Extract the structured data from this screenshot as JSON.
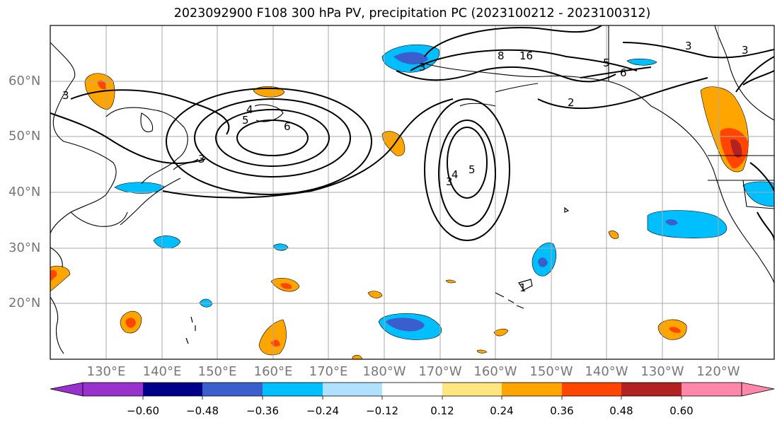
{
  "title": "2023092900 F108 300 hPa PV, precipitation PC (2023100212 - 2023100312)",
  "lat_labels": [
    "60°N",
    "50°N",
    "40°N",
    "30°N",
    "20°N"
  ],
  "lon_labels": [
    "130°E",
    "140°E",
    "150°E",
    "160°E",
    "170°E",
    "180°W",
    "170°W",
    "160°W",
    "150°W",
    "140°W",
    "130°W",
    "120°W"
  ],
  "colorbar": {
    "ticks": [
      "−0.60",
      "−0.48",
      "−0.36",
      "−0.24",
      "−0.12",
      "0.12",
      "0.24",
      "0.36",
      "0.48",
      "0.60"
    ],
    "levels": [
      -0.6,
      -0.48,
      -0.36,
      -0.24,
      -0.12,
      0.12,
      0.24,
      0.36,
      0.48,
      0.6
    ],
    "colors": [
      "#9932cc",
      "#00008b",
      "#3a5fcd",
      "#00bfff",
      "#b0e2ff",
      "#ffffff",
      "#ffe680",
      "#ffa500",
      "#ff4500",
      "#b22222",
      "#ff88aa"
    ]
  },
  "contour_labels": [
    "2",
    "3",
    "4",
    "5",
    "6",
    "8",
    "16",
    "1"
  ]
}
